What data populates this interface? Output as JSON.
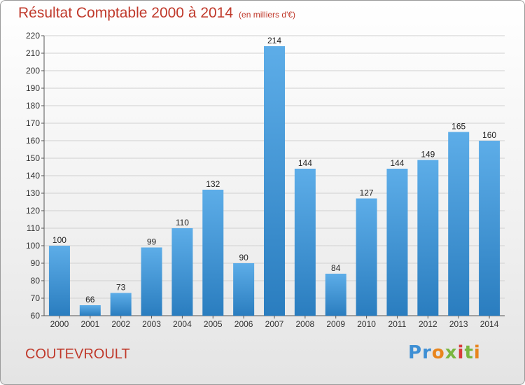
{
  "header": {
    "title": "Résultat Comptable 2000 à 2014",
    "unit": "(en milliers d'€)"
  },
  "footer": {
    "commune": "COUTEVROULT",
    "logo": "Proxiti"
  },
  "colors": {
    "title": "#c0392b",
    "bar_top": "#5dade8",
    "bar_bottom": "#2a7dbf"
  },
  "chart_data": {
    "type": "bar",
    "categories": [
      "2000",
      "2001",
      "2002",
      "2003",
      "2004",
      "2005",
      "2006",
      "2007",
      "2008",
      "2009",
      "2010",
      "2011",
      "2012",
      "2013",
      "2014"
    ],
    "values": [
      100,
      66,
      73,
      99,
      110,
      132,
      90,
      214,
      144,
      84,
      127,
      144,
      149,
      165,
      160
    ],
    "title": "Résultat Comptable 2000 à 2014",
    "subtitle": "(en milliers d'€)",
    "ylim": [
      60,
      220
    ],
    "yticks": [
      60,
      70,
      80,
      90,
      100,
      110,
      120,
      130,
      140,
      150,
      160,
      170,
      180,
      190,
      200,
      210,
      220
    ],
    "grid": true
  }
}
